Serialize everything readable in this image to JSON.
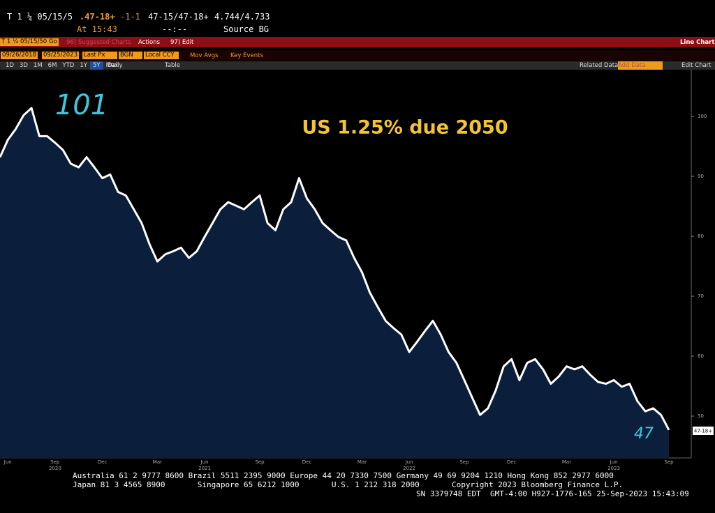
{
  "header": {
    "ticker": "T 1 ¼ 05/15/5",
    "change_price": ".47-18+",
    "change": "-1-1",
    "bid_ask": "47-15/47-18+",
    "yields": "4.744/4.733",
    "time": "At 15:43",
    "time2": "--:--",
    "source": "Source BG"
  },
  "toolbar": {
    "security": "T 1 ¼ 05/15/50 Go",
    "suggested": "96) Suggested Charts",
    "actions": "Actions",
    "edit": "97) Edit",
    "view": "Line Chart",
    "start_date": "09/26/2018",
    "end_date": "09/25/2023",
    "field": "Last Px",
    "source": "BGN",
    "currency": "Local CCY",
    "mov_avgs": "Mov Avgs",
    "key_events": "Key Events",
    "periods": [
      "1D",
      "3D",
      "1M",
      "6M",
      "YTD",
      "1Y",
      "5Y",
      "Max"
    ],
    "frequency": "Daily",
    "table": "Table",
    "related": "Related Data",
    "add_data": "Add Data",
    "edit_chart": "Edit Chart"
  },
  "footer": {
    "line1": "Australia 61 2 9777 8600 Brazil 5511 2395 9000 Europe 44 20 7330 7500 Germany 49 69 9204 1210 Hong Kong 852 2977 6000",
    "line2": "Japan 81 3 4565 8900       Singapore 65 6212 1000       U.S. 1 212 318 2000       Copyright 2023 Bloomberg Finance L.P.",
    "line3": "SN 3379748 EDT  GMT-4:00 H927-1776-165 25-Sep-2023 15:43:09"
  },
  "chart_data": {
    "type": "line",
    "title": "US 1.25% due 2050",
    "peak_label": "101",
    "last_label": "47",
    "last_price_tag": "47-18+",
    "categories": [
      null,
      "Jun",
      null,
      null,
      null,
      null,
      null,
      "Sep",
      null,
      null,
      null,
      null,
      null,
      "Dec",
      null,
      null,
      null,
      null,
      null,
      null,
      "Mar",
      null,
      null,
      null,
      null,
      null,
      "Jun",
      null,
      null,
      null,
      null,
      null,
      null,
      "Sep",
      null,
      null,
      null,
      null,
      null,
      "Dec",
      null,
      null,
      null,
      null,
      null,
      null,
      "Mar",
      null,
      null,
      null,
      null,
      null,
      "Jun",
      null,
      null,
      null,
      null,
      null,
      null,
      "Sep",
      null,
      null,
      null,
      null,
      null,
      "Dec",
      null,
      null,
      null,
      null,
      null,
      null,
      "Mar",
      null,
      null,
      null,
      null,
      null,
      "Jun",
      null,
      null,
      null,
      null,
      null,
      null,
      "Sep"
    ],
    "year_labels": [
      null,
      null,
      null,
      null,
      null,
      null,
      null,
      "2020",
      null,
      null,
      null,
      null,
      null,
      null,
      null,
      null,
      null,
      null,
      null,
      null,
      null,
      null,
      null,
      null,
      null,
      null,
      "2021",
      null,
      null,
      null,
      null,
      null,
      null,
      null,
      null,
      null,
      null,
      null,
      null,
      null,
      null,
      null,
      null,
      null,
      null,
      null,
      null,
      null,
      null,
      null,
      null,
      null,
      "2022",
      null,
      null,
      null,
      null,
      null,
      null,
      null,
      null,
      null,
      null,
      null,
      null,
      null,
      null,
      null,
      null,
      null,
      null,
      null,
      null,
      null,
      null,
      null,
      null,
      null,
      "2023",
      null,
      null,
      null,
      null,
      null,
      null,
      null
    ],
    "series": [
      {
        "color": "#ffffff",
        "fill": "#0b1f3c",
        "values": [
          93.2,
          96.1,
          97.9,
          100.2,
          101.4,
          96.7,
          96.7,
          95.6,
          94.4,
          92.1,
          91.5,
          93.2,
          91.5,
          89.7,
          90.3,
          87.4,
          86.8,
          84.5,
          82.2,
          78.7,
          75.8,
          77.0,
          77.5,
          78.1,
          76.4,
          77.5,
          79.9,
          82.2,
          84.5,
          85.7,
          85.1,
          84.5,
          85.7,
          86.8,
          82.2,
          81.0,
          84.5,
          85.7,
          89.7,
          86.3,
          84.5,
          82.2,
          81.0,
          79.9,
          79.3,
          76.4,
          74.0,
          70.6,
          68.2,
          65.9,
          64.7,
          63.6,
          60.7,
          62.4,
          64.2,
          65.9,
          63.6,
          60.7,
          58.9,
          56.0,
          53.1,
          50.2,
          51.3,
          54.3,
          58.3,
          59.5,
          56.0,
          58.9,
          59.5,
          57.8,
          55.4,
          56.6,
          58.3,
          57.8,
          58.3,
          56.9,
          55.7,
          55.4,
          56.0,
          54.9,
          55.4,
          52.5,
          50.8,
          51.3,
          50.2,
          47.7
        ]
      }
    ],
    "ylim": [
      43,
      108
    ],
    "yticks": [
      50,
      60,
      70,
      80,
      90,
      100
    ],
    "grid": false
  }
}
